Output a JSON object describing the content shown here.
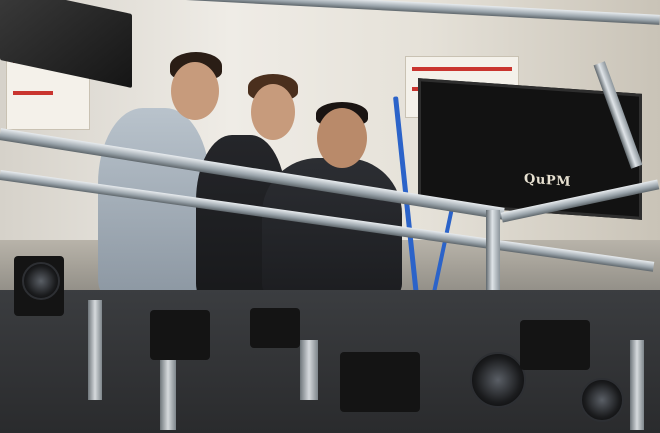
{
  "image": {
    "kind": "photograph",
    "subject": "optics-lab-researchers"
  },
  "visible_text": {
    "monitor_logo": "QuPM"
  },
  "colors": {
    "wall": "#e9e5dc",
    "frame_rail": "#c7cdd2",
    "optical_table": "#2a2b2d",
    "poster_accent": "#c9352f",
    "cable_blue": "#2b63c9"
  }
}
